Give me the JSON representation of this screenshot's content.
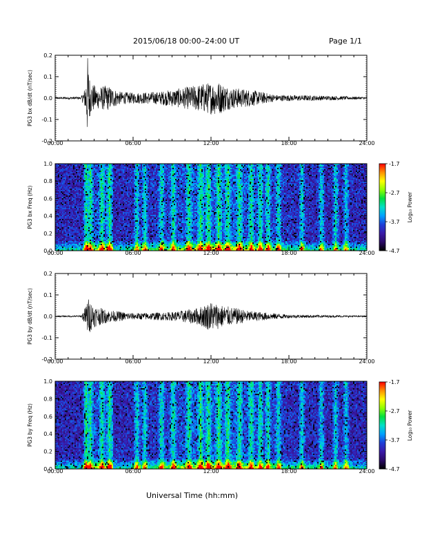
{
  "header": {
    "title": "2015/06/18  00:00–24:00 UT",
    "page": "Page 1/1"
  },
  "xaxis": {
    "label": "Universal Time (hh:mm)",
    "ticks": [
      "00:00",
      "06:00",
      "12:00",
      "18:00",
      "24:00"
    ],
    "range_hours": [
      0,
      24
    ]
  },
  "colorbar": {
    "label": "Log₁₀ Power",
    "ticks": [
      "-1.7",
      "-2.7",
      "-3.7",
      "-4.7"
    ],
    "range": [
      -4.7,
      -1.7
    ],
    "colormap": [
      "#000000",
      "#2a0a66",
      "#3a1aa8",
      "#1e3fd8",
      "#00a0ff",
      "#00e0c8",
      "#00e040",
      "#90ff00",
      "#ffff00",
      "#ff9000",
      "#ff0000"
    ]
  },
  "chart_data": [
    {
      "type": "line",
      "panel": "PG3 bx dB/dt",
      "ylabel": "PG3 bx dB/dt (nT/sec)",
      "ylim": [
        -0.2,
        0.2
      ],
      "yticks": [
        "0.2",
        "0.1",
        "0.0",
        "-0.1",
        "-0.2"
      ],
      "x_unit": "hours UT",
      "envelope": [
        {
          "x": 0.0,
          "amp": 0.005
        },
        {
          "x": 2.0,
          "amp": 0.006
        },
        {
          "x": 2.3,
          "amp": 0.05
        },
        {
          "x": 2.5,
          "amp": 0.2
        },
        {
          "x": 2.7,
          "amp": 0.08
        },
        {
          "x": 3.2,
          "amp": 0.05
        },
        {
          "x": 4.0,
          "amp": 0.06
        },
        {
          "x": 5.0,
          "amp": 0.03
        },
        {
          "x": 6.0,
          "amp": 0.025
        },
        {
          "x": 8.0,
          "amp": 0.03
        },
        {
          "x": 10.0,
          "amp": 0.05
        },
        {
          "x": 11.5,
          "amp": 0.07
        },
        {
          "x": 12.5,
          "amp": 0.08
        },
        {
          "x": 13.5,
          "amp": 0.05
        },
        {
          "x": 15.0,
          "amp": 0.04
        },
        {
          "x": 17.0,
          "amp": 0.015
        },
        {
          "x": 20.0,
          "amp": 0.012
        },
        {
          "x": 24.0,
          "amp": 0.005
        }
      ]
    },
    {
      "type": "heatmap",
      "panel": "PG3 bx Freq",
      "ylabel": "PG3 bx Freq (Hz)",
      "ylim": [
        0.0,
        1.0
      ],
      "yticks": [
        "1.0",
        "0.8",
        "0.6",
        "0.4",
        "0.2",
        "0.0"
      ],
      "z_range": [
        -4.7,
        -1.7
      ],
      "active_times_hours": [
        2.4,
        2.7,
        3.6,
        4.2,
        6.3,
        6.9,
        8.2,
        9.1,
        10.3,
        11.2,
        11.8,
        12.6,
        13.3,
        14.2,
        15.1,
        15.8,
        16.4,
        17.2,
        19.0,
        20.5,
        21.6,
        22.4
      ]
    },
    {
      "type": "line",
      "panel": "PG3 by dB/dt",
      "ylabel": "PG3 by dB/dt (nT/sec)",
      "ylim": [
        -0.2,
        0.2
      ],
      "yticks": [
        "0.2",
        "0.1",
        "0.0",
        "-0.1",
        "-0.2"
      ],
      "x_unit": "hours UT",
      "envelope": [
        {
          "x": 0.0,
          "amp": 0.003
        },
        {
          "x": 2.0,
          "amp": 0.004
        },
        {
          "x": 2.3,
          "amp": 0.04
        },
        {
          "x": 2.5,
          "amp": 0.09
        },
        {
          "x": 3.0,
          "amp": 0.05
        },
        {
          "x": 4.0,
          "amp": 0.03
        },
        {
          "x": 6.0,
          "amp": 0.015
        },
        {
          "x": 9.0,
          "amp": 0.02
        },
        {
          "x": 11.0,
          "amp": 0.04
        },
        {
          "x": 12.0,
          "amp": 0.07
        },
        {
          "x": 13.0,
          "amp": 0.05
        },
        {
          "x": 15.0,
          "amp": 0.025
        },
        {
          "x": 18.0,
          "amp": 0.008
        },
        {
          "x": 24.0,
          "amp": 0.003
        }
      ]
    },
    {
      "type": "heatmap",
      "panel": "PG3 by Freq",
      "ylabel": "PG3 by Freq (Hz)",
      "ylim": [
        0.0,
        1.0
      ],
      "yticks": [
        "1.0",
        "0.8",
        "0.6",
        "0.4",
        "0.2",
        "0.0"
      ],
      "z_range": [
        -4.7,
        -1.7
      ],
      "active_times_hours": [
        2.4,
        2.7,
        3.6,
        4.2,
        6.3,
        6.9,
        8.2,
        9.1,
        10.3,
        11.2,
        11.8,
        12.6,
        13.3,
        14.2,
        15.1,
        15.8,
        16.4,
        17.2,
        19.0,
        20.5,
        21.6,
        22.4
      ]
    }
  ]
}
